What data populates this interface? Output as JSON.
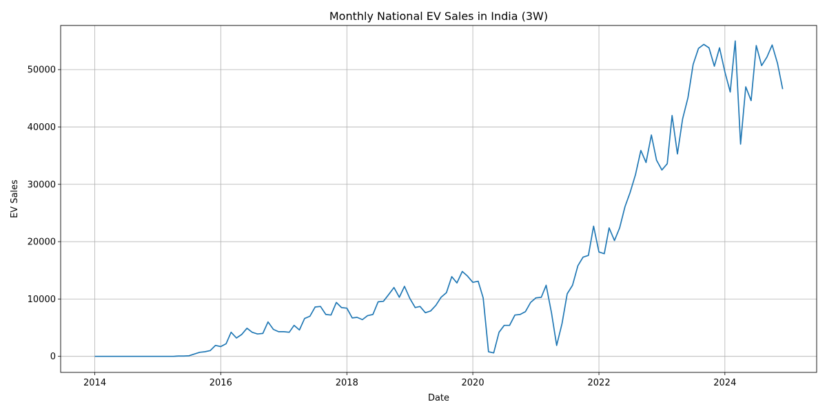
{
  "chart_data": {
    "type": "line",
    "title": "Monthly National EV Sales in India (3W)",
    "xlabel": "Date",
    "ylabel": "EV Sales",
    "xlim": [
      "2013-06-17",
      "2025-06-16"
    ],
    "ylim": [
      -2800,
      57700
    ],
    "x_ticks": [
      "2014",
      "2016",
      "2018",
      "2020",
      "2022",
      "2024"
    ],
    "y_ticks": [
      0,
      10000,
      20000,
      30000,
      40000,
      50000
    ],
    "grid": true,
    "series_color": "#1f77b4",
    "series": [
      {
        "x": [
          "2014-01",
          "2014-02",
          "2014-03",
          "2014-04",
          "2014-05",
          "2014-06",
          "2014-07",
          "2014-08",
          "2014-09",
          "2014-10",
          "2014-11",
          "2014-12",
          "2015-01",
          "2015-02",
          "2015-03",
          "2015-04",
          "2015-05",
          "2015-06",
          "2015-07",
          "2015-08",
          "2015-09",
          "2015-10",
          "2015-11",
          "2015-12",
          "2016-01",
          "2016-02",
          "2016-03",
          "2016-04",
          "2016-05",
          "2016-06",
          "2016-07",
          "2016-08",
          "2016-09",
          "2016-10",
          "2016-11",
          "2016-12",
          "2017-01",
          "2017-02",
          "2017-03",
          "2017-04",
          "2017-05",
          "2017-06",
          "2017-07",
          "2017-08",
          "2017-09",
          "2017-10",
          "2017-11",
          "2017-12",
          "2018-01",
          "2018-02",
          "2018-03",
          "2018-04",
          "2018-05",
          "2018-06",
          "2018-07",
          "2018-08",
          "2018-09",
          "2018-10",
          "2018-11",
          "2018-12",
          "2019-01",
          "2019-02",
          "2019-03",
          "2019-04",
          "2019-05",
          "2019-06",
          "2019-07",
          "2019-08",
          "2019-09",
          "2019-10",
          "2019-11",
          "2019-12",
          "2020-01",
          "2020-02",
          "2020-03",
          "2020-04",
          "2020-05",
          "2020-06",
          "2020-07",
          "2020-08",
          "2020-09",
          "2020-10",
          "2020-11",
          "2020-12",
          "2021-01",
          "2021-02",
          "2021-03",
          "2021-04",
          "2021-05",
          "2021-06",
          "2021-07",
          "2021-08",
          "2021-09",
          "2021-10",
          "2021-11",
          "2021-12",
          "2022-01",
          "2022-02",
          "2022-03",
          "2022-04",
          "2022-05",
          "2022-06",
          "2022-07",
          "2022-08",
          "2022-09",
          "2022-10",
          "2022-11",
          "2022-12",
          "2023-01",
          "2023-02",
          "2023-03",
          "2023-04",
          "2023-05",
          "2023-06",
          "2023-07",
          "2023-08",
          "2023-09",
          "2023-10",
          "2023-11",
          "2023-12",
          "2024-01",
          "2024-02",
          "2024-03",
          "2024-04",
          "2024-05",
          "2024-06",
          "2024-07",
          "2024-08",
          "2024-09",
          "2024-10",
          "2024-11",
          "2024-12"
        ],
        "y": [
          0,
          0,
          0,
          0,
          0,
          0,
          0,
          0,
          0,
          0,
          0,
          0,
          0,
          0,
          0,
          0,
          50,
          50,
          100,
          400,
          700,
          800,
          1000,
          1900,
          1700,
          2200,
          4200,
          3200,
          3800,
          4900,
          4200,
          3900,
          4000,
          6000,
          4700,
          4300,
          4300,
          4200,
          5400,
          4600,
          6600,
          7000,
          8600,
          8700,
          7300,
          7200,
          9400,
          8500,
          8400,
          6700,
          6800,
          6400,
          7100,
          7300,
          9500,
          9600,
          10800,
          12000,
          10300,
          12200,
          10100,
          8500,
          8700,
          7600,
          7900,
          8900,
          10300,
          11100,
          13900,
          12800,
          14800,
          14000,
          12900,
          13100,
          10200,
          800,
          600,
          4200,
          5400,
          5400,
          7200,
          7300,
          7800,
          9400,
          10200,
          10300,
          12400,
          7600,
          1900,
          5700,
          10900,
          12400,
          15800,
          17300,
          17600,
          22700,
          18200,
          17900,
          22400,
          20200,
          22400,
          26100,
          28600,
          31700,
          35900,
          33800,
          38600,
          34200,
          32500,
          33600,
          42000,
          35300,
          41400,
          45100,
          50900,
          53700,
          54400,
          53800,
          50600,
          53800,
          49600,
          46100,
          55000,
          37000,
          47000,
          44600,
          54200,
          50700,
          52200,
          54300,
          51100,
          46600
        ]
      }
    ]
  }
}
